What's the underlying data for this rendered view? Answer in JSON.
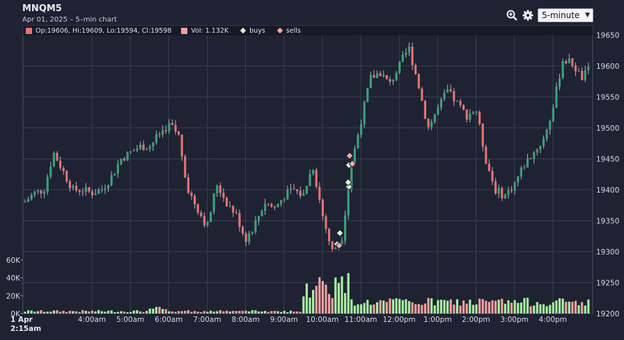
{
  "header": {
    "title": "MNQM5",
    "subtitle": "Apr 01, 2025 – 5–min chart",
    "interval": "5-minute"
  },
  "toolbar": {
    "icons": [
      "zoom-in-icon",
      "gear-icon"
    ]
  },
  "legend": {
    "ohlc": "Op:19606, Hi:19609, Lo:19594, Cl:19598",
    "volume": "Vol: 1.132K",
    "buys": "buys",
    "sells": "sells"
  },
  "colors": {
    "background": "#1e2232",
    "up": "#3aa07a",
    "down": "#e5726f",
    "vol_up": "#a8f0a0",
    "vol_down": "#f0a0a0",
    "grid": "#3a3f52",
    "buy_marker": "#d8f5d0",
    "sell_marker": "#f5a8a8"
  },
  "chart_data": {
    "type": "candlestick",
    "title": "MNQM5",
    "date_label": "1 Apr",
    "start_time": "2:15am",
    "x_tick_labels": [
      "4:00am",
      "5:00am",
      "6:00am",
      "7:00am",
      "8:00am",
      "9:00am",
      "10:00am",
      "11:00am",
      "12:00pm",
      "1:00pm",
      "2:00pm",
      "3:00pm",
      "4:00pm"
    ],
    "y_ticks": [
      19200,
      19250,
      19300,
      19350,
      19400,
      19450,
      19500,
      19550,
      19600,
      19650
    ],
    "ylim": [
      19200,
      19665
    ],
    "volume_ticks": [
      "0K",
      "20K",
      "40K",
      "60K"
    ],
    "volume_ylim": [
      0,
      60000
    ],
    "close_path": [
      [
        "2:15am",
        19380
      ],
      [
        "2:30am",
        19395
      ],
      [
        "2:45am",
        19400
      ],
      [
        "3:00am",
        19460
      ],
      [
        "3:15am",
        19430
      ],
      [
        "3:30am",
        19400
      ],
      [
        "3:45am",
        19400
      ],
      [
        "4:00am",
        19395
      ],
      [
        "4:15am",
        19400
      ],
      [
        "4:30am",
        19420
      ],
      [
        "4:45am",
        19450
      ],
      [
        "5:00am",
        19460
      ],
      [
        "5:15am",
        19470
      ],
      [
        "5:30am",
        19470
      ],
      [
        "5:45am",
        19490
      ],
      [
        "6:00am",
        19505
      ],
      [
        "6:15am",
        19490
      ],
      [
        "6:30am",
        19400
      ],
      [
        "6:45am",
        19370
      ],
      [
        "7:00am",
        19340
      ],
      [
        "7:15am",
        19410
      ],
      [
        "7:30am",
        19380
      ],
      [
        "7:45am",
        19360
      ],
      [
        "8:00am",
        19320
      ],
      [
        "8:15am",
        19345
      ],
      [
        "8:30am",
        19380
      ],
      [
        "8:45am",
        19370
      ],
      [
        "9:00am",
        19390
      ],
      [
        "9:15am",
        19400
      ],
      [
        "9:30am",
        19390
      ],
      [
        "9:45am",
        19440
      ],
      [
        "10:00am",
        19360
      ],
      [
        "10:15am",
        19300
      ],
      [
        "10:30am",
        19320
      ],
      [
        "10:45am",
        19440
      ],
      [
        "11:00am",
        19510
      ],
      [
        "11:15am",
        19580
      ],
      [
        "11:30am",
        19590
      ],
      [
        "11:45am",
        19570
      ],
      [
        "12:00pm",
        19600
      ],
      [
        "12:15pm",
        19630
      ],
      [
        "12:30pm",
        19570
      ],
      [
        "12:45pm",
        19500
      ],
      [
        "1:00pm",
        19530
      ],
      [
        "1:15pm",
        19560
      ],
      [
        "1:30pm",
        19540
      ],
      [
        "1:45pm",
        19520
      ],
      [
        "2:00pm",
        19530
      ],
      [
        "2:15pm",
        19450
      ],
      [
        "2:30pm",
        19400
      ],
      [
        "2:45pm",
        19390
      ],
      [
        "3:00pm",
        19410
      ],
      [
        "3:15pm",
        19440
      ],
      [
        "3:30pm",
        19460
      ],
      [
        "3:45pm",
        19480
      ],
      [
        "4:00pm",
        19530
      ],
      [
        "4:15pm",
        19610
      ],
      [
        "4:30pm",
        19605
      ],
      [
        "4:45pm",
        19580
      ],
      [
        "5:00pm",
        19598
      ]
    ],
    "last_bar": {
      "open": 19606,
      "high": 19609,
      "low": 19594,
      "close": 19598,
      "volume": 1132
    },
    "trade_markers": [
      {
        "type": "buy",
        "price": 19312
      },
      {
        "type": "sell",
        "price": 19310
      },
      {
        "type": "buy",
        "price": 19330
      },
      {
        "type": "buy",
        "price": 19405
      },
      {
        "type": "buy",
        "price": 19412
      },
      {
        "type": "buy",
        "price": 19440
      },
      {
        "type": "sell",
        "price": 19442
      },
      {
        "type": "sell",
        "price": 19455
      }
    ],
    "legend_entries": [
      "buys",
      "sells"
    ],
    "grid": true
  }
}
